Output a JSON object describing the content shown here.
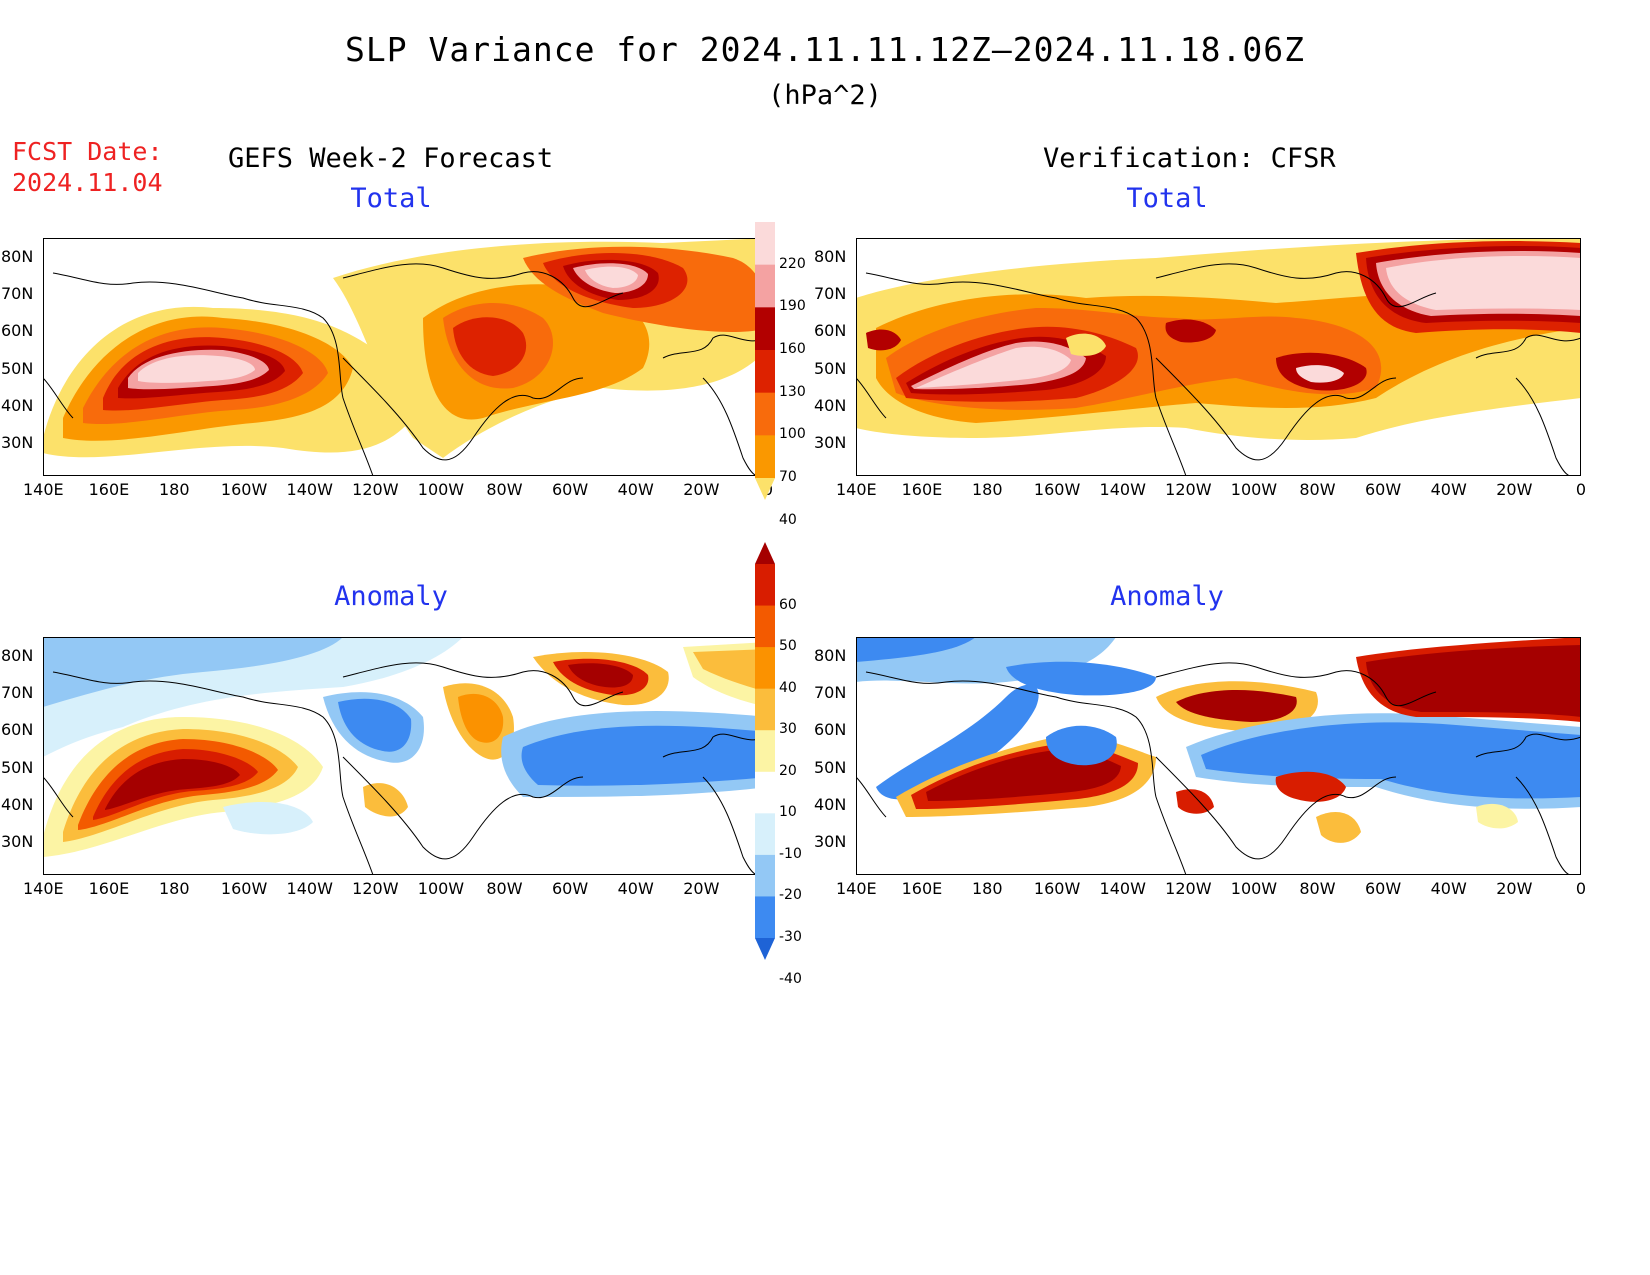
{
  "title": "SLP Variance for 2024.11.11.12Z–2024.11.18.06Z",
  "units": "(hPa^2)",
  "fcst_label": "FCST Date:",
  "fcst_date": "2024.11.04",
  "left_column_title": "GEFS Week-2 Forecast",
  "right_column_title": "Verification: CFSR",
  "panel_total_label": "Total",
  "panel_anomaly_label": "Anomaly",
  "lat_labels": [
    "80N",
    "70N",
    "60N",
    "50N",
    "40N",
    "30N"
  ],
  "lon_labels": [
    "140E",
    "160E",
    "180",
    "160W",
    "140W",
    "120W",
    "100W",
    "80W",
    "60W",
    "40W",
    "20W",
    "0"
  ],
  "total_scale": {
    "levels": [
      "220",
      "190",
      "160",
      "130",
      "100",
      "70",
      "40"
    ],
    "colors": [
      "#ffffff",
      "#fbdada",
      "#f4a2a2",
      "#b20000",
      "#dd2200",
      "#f86b0c",
      "#fa9800",
      "#fce16a"
    ]
  },
  "anomaly_scale": {
    "levels": [
      "60",
      "50",
      "40",
      "30",
      "20",
      "10",
      "-10",
      "-20",
      "-30",
      "-40"
    ],
    "colors": [
      "#a50000",
      "#d81d00",
      "#f35a00",
      "#fb9200",
      "#fbbd3c",
      "#fcf4a4",
      "#ffffff",
      "#d7f0fb",
      "#93c8f5",
      "#3d8af1",
      "#1e63d6"
    ]
  }
}
